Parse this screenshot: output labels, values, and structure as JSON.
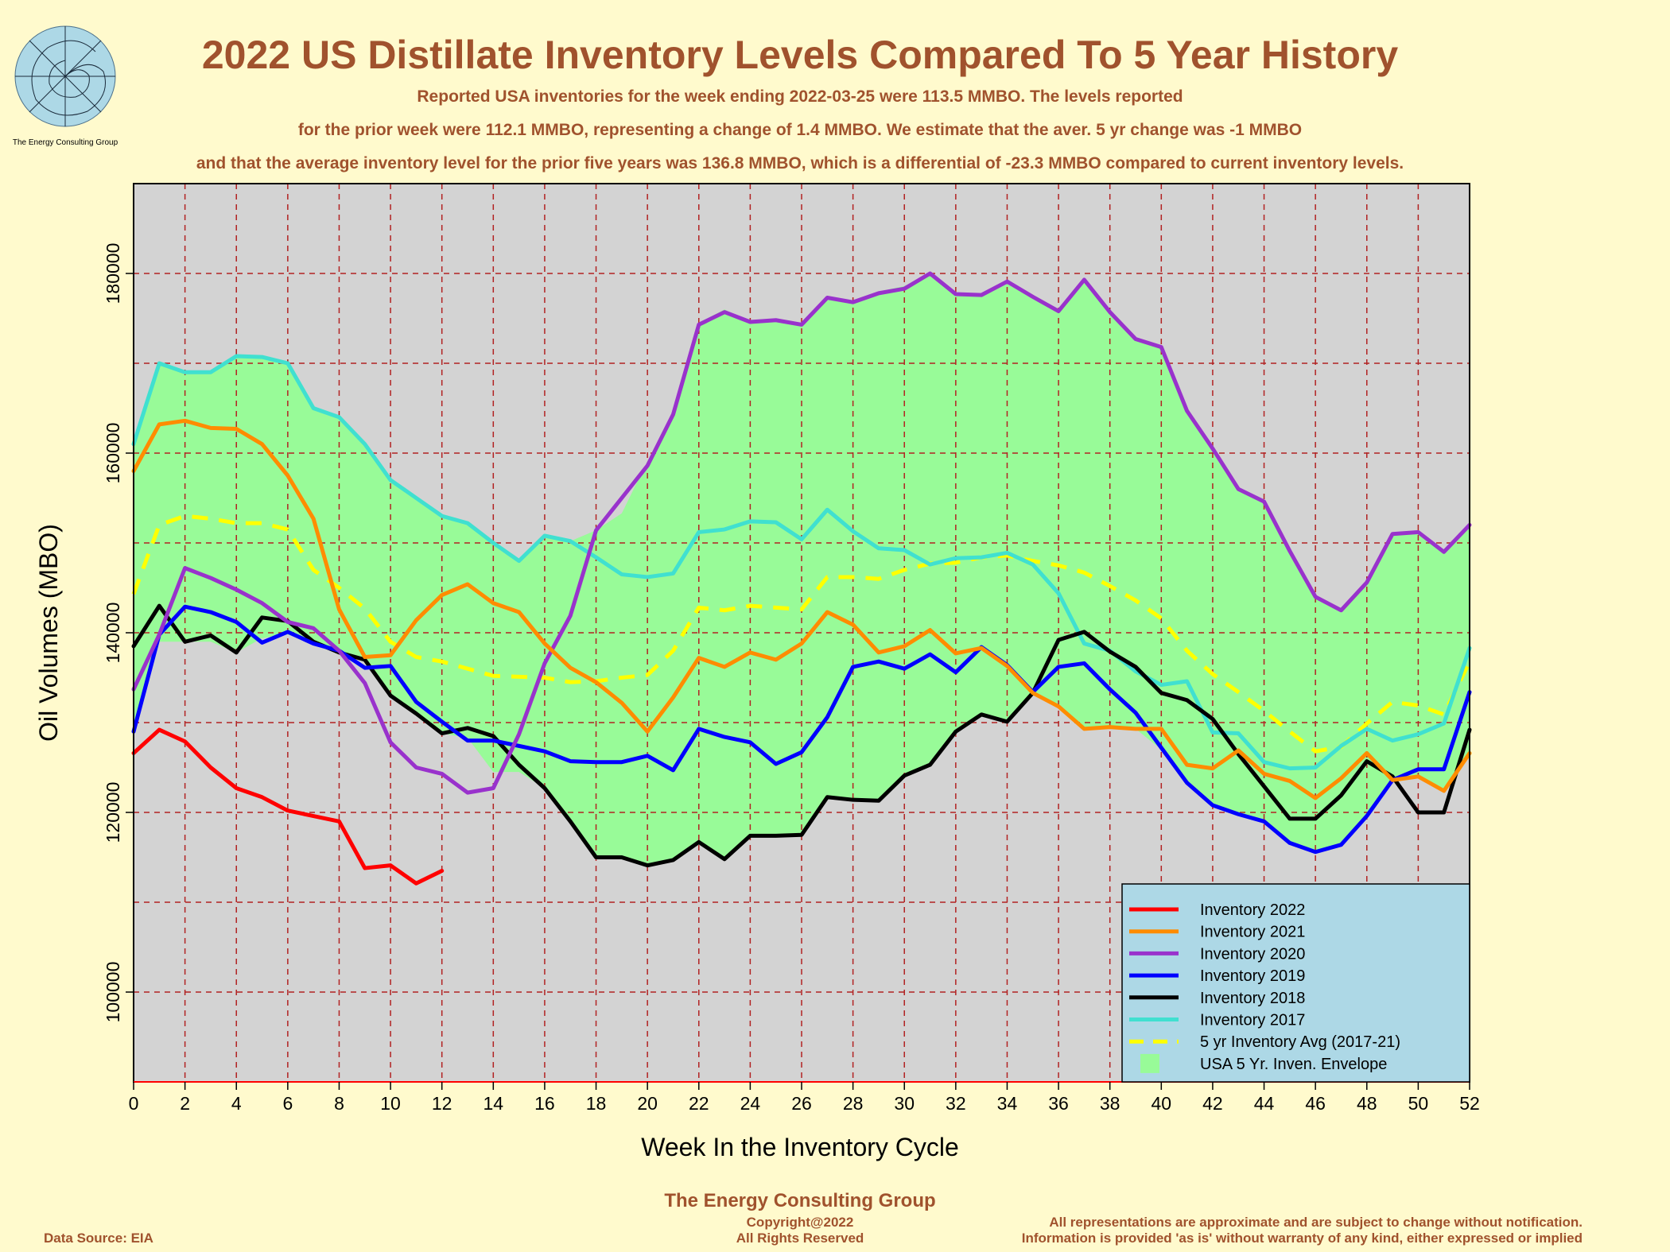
{
  "title": "2022 US Distillate Inventory Levels Compared To 5 Year History",
  "subtitle_lines": [
    "Reported USA inventories for the week ending 2022-03-25 were 113.5 MMBO.  The levels reported",
    "for the prior week were 112.1 MMBO, representing a change of 1.4 MMBO.  We estimate that the aver. 5 yr change was -1 MMBO",
    "and that the average inventory level for the prior five years was 136.8 MMBO, which is a differential of -23.3 MMBO compared to current inventory levels."
  ],
  "logo_caption": "The Energy Consulting Group",
  "footer": {
    "company": "The Energy Consulting Group",
    "copyright": "Copyright@2022",
    "rights": "All Rights Reserved",
    "source": "Data Source: EIA",
    "disclaimer1": "All representations are approximate and are subject to change without notification.",
    "disclaimer2": "Information is provided 'as is' without warranty of any kind, either expressed or implied"
  },
  "colors": {
    "background": "#FFFACD",
    "plot_bg": "#D3D3D3",
    "envelope": "#98FB98",
    "grid": "#B22222",
    "title": "#A0522D",
    "legend_bg": "#ADD8E6"
  },
  "chart_data": {
    "type": "line",
    "xlabel": "Week In the Inventory Cycle",
    "ylabel": "Oil Volumes (MBO)",
    "xlim": [
      0,
      52
    ],
    "ylim": [
      90000,
      190000
    ],
    "x_ticks": [
      0,
      2,
      4,
      6,
      8,
      10,
      12,
      14,
      16,
      18,
      20,
      22,
      24,
      26,
      28,
      30,
      32,
      34,
      36,
      38,
      40,
      42,
      44,
      46,
      48,
      50,
      52
    ],
    "y_tick_labels": [
      100000,
      120000,
      140000,
      160000,
      180000
    ],
    "y_grid": [
      100000,
      110000,
      120000,
      130000,
      140000,
      150000,
      160000,
      170000,
      180000
    ],
    "grid": true,
    "legend_position": "bottom-right",
    "envelope": {
      "name": "USA 5 Yr. Inven. Envelope",
      "color": "#98FB98",
      "upper": [
        161500,
        170000,
        169000,
        169000,
        170800,
        170700,
        170000,
        165000,
        164000,
        161000,
        157000,
        155000,
        153000,
        152200,
        150000,
        148000,
        150800,
        150200,
        151400,
        153300,
        159100,
        164500,
        174500,
        176000,
        174500,
        174800,
        174300,
        177300,
        176800,
        178000,
        178600,
        180100,
        177800,
        177800,
        179300,
        177600,
        175900,
        179400,
        175900,
        172700,
        171900,
        164800,
        160600,
        156000,
        154600,
        149200,
        144100,
        142500,
        145700,
        151000,
        151200,
        149000,
        152000
      ],
      "lower": [
        128700,
        139000,
        139000,
        139000,
        137800,
        139400,
        139800,
        138800,
        138000,
        137000,
        133000,
        131000,
        128800,
        128300,
        124500,
        124500,
        122700,
        119000,
        115000,
        115000,
        114100,
        114700,
        116700,
        114800,
        117400,
        117400,
        117500,
        121700,
        121400,
        121300,
        124100,
        125300,
        129000,
        130900,
        130100,
        133300,
        131800,
        129300,
        129500,
        129300,
        127000,
        123300,
        120800,
        119800,
        119000,
        116600,
        115600,
        116400,
        119600,
        123600,
        124000,
        122400,
        126600
      ]
    },
    "series": [
      {
        "name": "Inventory 2022",
        "color": "#FF0000",
        "dash": false,
        "values": [
          126600,
          129200,
          127900,
          125000,
          122700,
          121700,
          120200,
          119600,
          119000,
          113800,
          114100,
          112100,
          113500
        ]
      },
      {
        "name": "Inventory 2021",
        "color": "#FF8C00",
        "dash": false,
        "values": [
          158000,
          163200,
          163600,
          162800,
          162700,
          161000,
          157500,
          152700,
          142600,
          137300,
          137500,
          141400,
          144200,
          145400,
          143300,
          142300,
          138800,
          136100,
          134500,
          132200,
          129000,
          132800,
          137200,
          136200,
          137800,
          137000,
          138800,
          142300,
          140900,
          137800,
          138500,
          140300,
          137700,
          138300,
          136300,
          133300,
          131800,
          129300,
          129500,
          129300,
          129300,
          125300,
          124900,
          126900,
          124300,
          123500,
          121600,
          123800,
          126600,
          123600,
          124000,
          122400,
          126600
        ]
      },
      {
        "name": "Inventory 2020",
        "color": "#9932CC",
        "dash": false,
        "values": [
          133700,
          139800,
          147200,
          146100,
          144800,
          143300,
          141200,
          140500,
          138000,
          134400,
          127800,
          125000,
          124300,
          122200,
          122700,
          128700,
          136600,
          141900,
          151400,
          155000,
          158600,
          164300,
          174300,
          175700,
          174600,
          174800,
          174300,
          177300,
          176800,
          177800,
          178300,
          180000,
          177700,
          177600,
          179100,
          177400,
          175800,
          179300,
          175700,
          172700,
          171800,
          164700,
          160500,
          156000,
          154600,
          149100,
          144000,
          142500,
          145600,
          151000,
          151200,
          149000,
          152000
        ]
      },
      {
        "name": "Inventory 2019",
        "color": "#0000FF",
        "dash": false,
        "values": [
          129000,
          139800,
          142900,
          142300,
          141200,
          138900,
          140100,
          138800,
          138000,
          136100,
          136300,
          132300,
          130100,
          128000,
          128000,
          127400,
          126800,
          125700,
          125600,
          125600,
          126300,
          124700,
          129300,
          128400,
          127800,
          125400,
          126700,
          130600,
          136200,
          136800,
          136000,
          137600,
          135600,
          138400,
          136400,
          133400,
          136200,
          136600,
          133700,
          131100,
          127200,
          123300,
          120800,
          119800,
          119000,
          116600,
          115600,
          116400,
          119600,
          123600,
          124800,
          124800,
          133400
        ]
      },
      {
        "name": "Inventory 2018",
        "color": "#000000",
        "dash": false,
        "values": [
          138500,
          143000,
          139000,
          139700,
          137800,
          141700,
          141300,
          139000,
          137800,
          137000,
          133000,
          131000,
          128800,
          129400,
          128500,
          125300,
          122700,
          119000,
          115000,
          115000,
          114100,
          114700,
          116700,
          114800,
          117400,
          117400,
          117500,
          121700,
          121400,
          121300,
          124100,
          125300,
          129000,
          130900,
          130100,
          133300,
          139200,
          140100,
          137900,
          136200,
          133300,
          132500,
          130400,
          126500,
          122900,
          119300,
          119300,
          121900,
          125700,
          124000,
          120000,
          120000,
          129200
        ]
      },
      {
        "name": "Inventory 2017",
        "color": "#40E0D0",
        "dash": false,
        "values": [
          161000,
          170000,
          169000,
          169000,
          170800,
          170700,
          170000,
          165000,
          164000,
          161000,
          157000,
          155000,
          153000,
          152200,
          150000,
          148000,
          150800,
          150200,
          148400,
          146500,
          146200,
          146600,
          151200,
          151500,
          152400,
          152300,
          150400,
          153700,
          151300,
          149400,
          149200,
          147600,
          148300,
          148400,
          148900,
          147600,
          144400,
          138800,
          138000,
          135700,
          134200,
          134600,
          128900,
          128800,
          125600,
          124900,
          125000,
          127400,
          129300,
          128000,
          128700,
          129900,
          138300
        ]
      },
      {
        "name": "5 yr Inventory Avg (2017-21)",
        "color": "#FFFF00",
        "dash": true,
        "values": [
          144300,
          152000,
          153000,
          152700,
          152200,
          152200,
          151500,
          147000,
          145000,
          142700,
          139000,
          137300,
          136800,
          136000,
          135200,
          135100,
          135000,
          134500,
          134600,
          135000,
          135300,
          138000,
          142800,
          142500,
          143000,
          142800,
          142600,
          146200,
          146200,
          146000,
          147000,
          147700,
          147800,
          148400,
          148600,
          148000,
          147500,
          146700,
          145200,
          143600,
          141600,
          138000,
          135400,
          133400,
          131300,
          129000,
          126800,
          127300,
          129900,
          132300,
          131900,
          130900,
          136800
        ]
      }
    ]
  }
}
